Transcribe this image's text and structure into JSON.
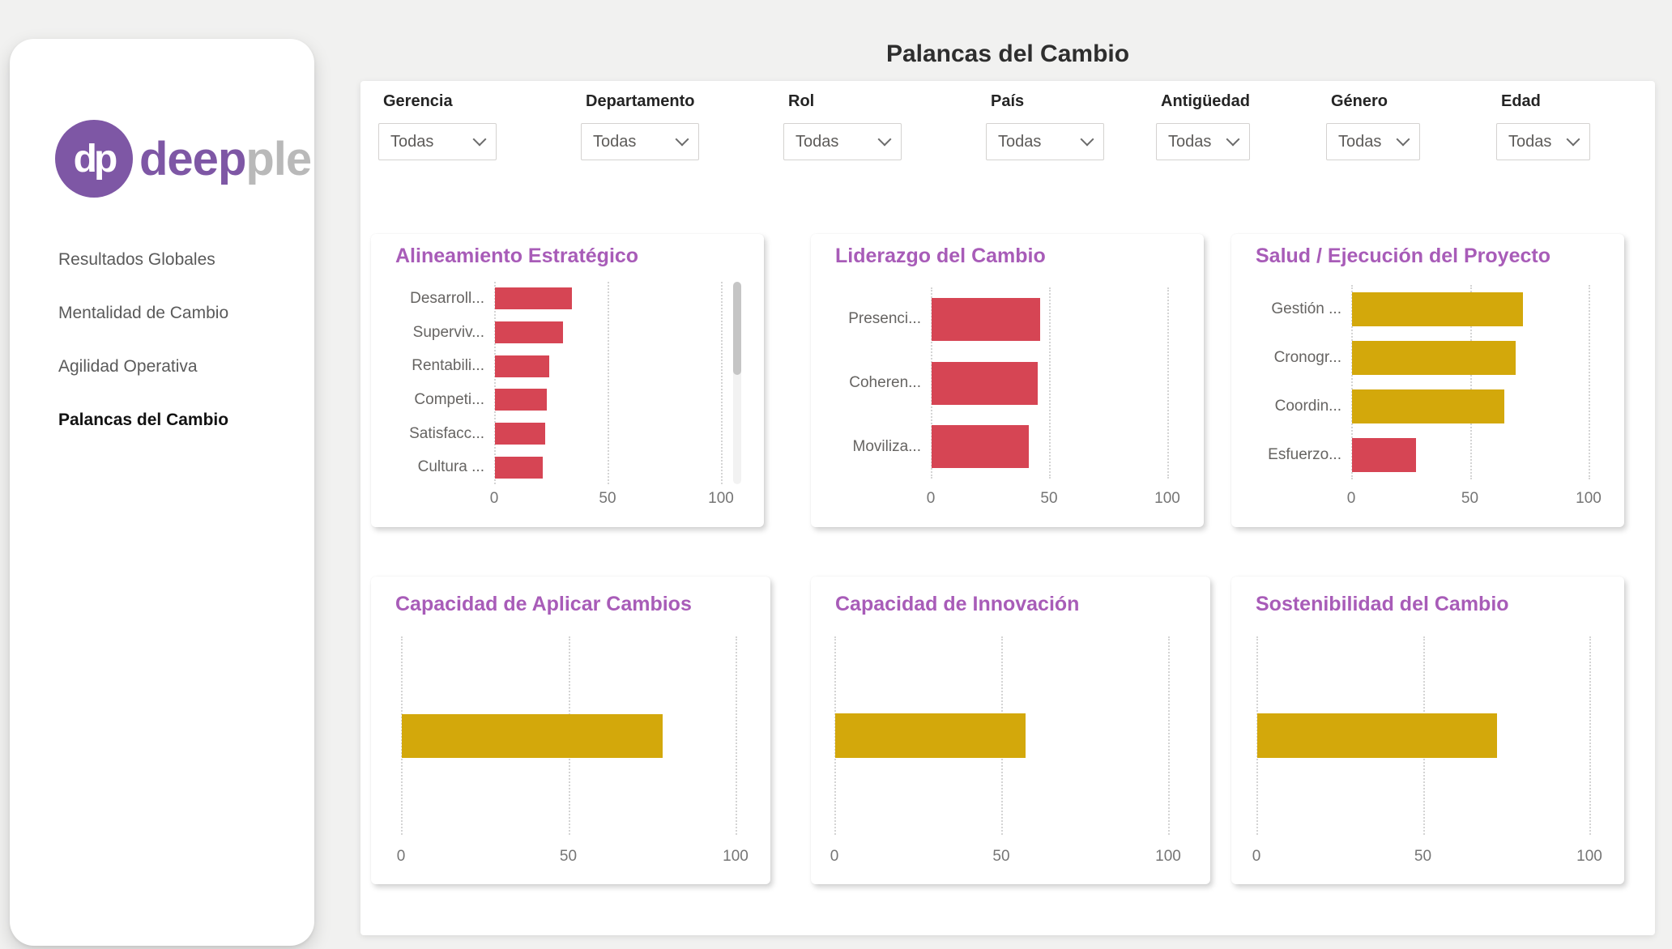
{
  "header": {
    "title": "Palancas del Cambio"
  },
  "sidebar": {
    "logo_monogram": "dp",
    "logo_primary": "deep",
    "logo_secondary": "ple",
    "items": [
      {
        "label": "Resultados Globales",
        "active": false
      },
      {
        "label": "Mentalidad de Cambio",
        "active": false
      },
      {
        "label": "Agilidad Operativa",
        "active": false
      },
      {
        "label": "Palancas del Cambio",
        "active": true
      }
    ]
  },
  "filters": {
    "items": [
      {
        "label": "Gerencia",
        "value": "Todas"
      },
      {
        "label": "Departamento",
        "value": "Todas"
      },
      {
        "label": "Rol",
        "value": "Todas"
      },
      {
        "label": "País",
        "value": "Todas"
      },
      {
        "label": "Antigüedad",
        "value": "Todas"
      },
      {
        "label": "Género",
        "value": "Todas"
      },
      {
        "label": "Edad",
        "value": "Todas"
      }
    ]
  },
  "colors": {
    "bar_red": "#d64554",
    "bar_yellow": "#d3a80b",
    "chart_title_purple": "#a85cb8",
    "brand_purple": "#7e57a5",
    "logo_gray": "#b9b9b9",
    "background_gray": "#f1f1f0"
  },
  "chart_data": [
    {
      "type": "bar",
      "orientation": "horizontal",
      "title": "Alineamiento Estratégico",
      "categories": [
        "Desarroll...",
        "Superviv...",
        "Rentabili...",
        "Competi...",
        "Satisfacc...",
        "Cultura ..."
      ],
      "values": [
        34,
        30,
        24,
        23,
        22,
        21
      ],
      "bar_colors": [
        "#d64554",
        "#d64554",
        "#d64554",
        "#d64554",
        "#d64554",
        "#d64554"
      ],
      "xticks": [
        0,
        50,
        100
      ],
      "xlim": [
        0,
        100
      ],
      "grid": "dotted-vertical",
      "scrollbar": true
    },
    {
      "type": "bar",
      "orientation": "horizontal",
      "title": "Liderazgo del Cambio",
      "categories": [
        "Presenci...",
        "Coheren...",
        "Moviliza..."
      ],
      "values": [
        46,
        45,
        41
      ],
      "bar_colors": [
        "#d64554",
        "#d64554",
        "#d64554"
      ],
      "xticks": [
        0,
        50,
        100
      ],
      "xlim": [
        0,
        100
      ],
      "grid": "dotted-vertical",
      "scrollbar": false
    },
    {
      "type": "bar",
      "orientation": "horizontal",
      "title": "Salud / Ejecución del Proyecto",
      "categories": [
        "Gestión ...",
        "Cronogr...",
        "Coordin...",
        "Esfuerzo..."
      ],
      "values": [
        72,
        69,
        64,
        27
      ],
      "bar_colors": [
        "#d3a80b",
        "#d3a80b",
        "#d3a80b",
        "#d64554"
      ],
      "xticks": [
        0,
        50,
        100
      ],
      "xlim": [
        0,
        100
      ],
      "grid": "dotted-vertical",
      "scrollbar": false
    },
    {
      "type": "bar",
      "orientation": "horizontal",
      "title": "Capacidad de Aplicar Cambios",
      "categories": [
        ""
      ],
      "values": [
        78
      ],
      "bar_colors": [
        "#d3a80b"
      ],
      "xticks": [
        0,
        50,
        100
      ],
      "xlim": [
        0,
        100
      ],
      "grid": "dotted-vertical",
      "scrollbar": false
    },
    {
      "type": "bar",
      "orientation": "horizontal",
      "title": "Capacidad de Innovación",
      "categories": [
        ""
      ],
      "values": [
        57
      ],
      "bar_colors": [
        "#d3a80b"
      ],
      "xticks": [
        0,
        50,
        100
      ],
      "xlim": [
        0,
        100
      ],
      "grid": "dotted-vertical",
      "scrollbar": false
    },
    {
      "type": "bar",
      "orientation": "horizontal",
      "title": "Sostenibilidad del Cambio",
      "categories": [
        ""
      ],
      "values": [
        72
      ],
      "bar_colors": [
        "#d3a80b"
      ],
      "xticks": [
        0,
        50,
        100
      ],
      "xlim": [
        0,
        100
      ],
      "grid": "dotted-vertical",
      "scrollbar": false
    }
  ]
}
